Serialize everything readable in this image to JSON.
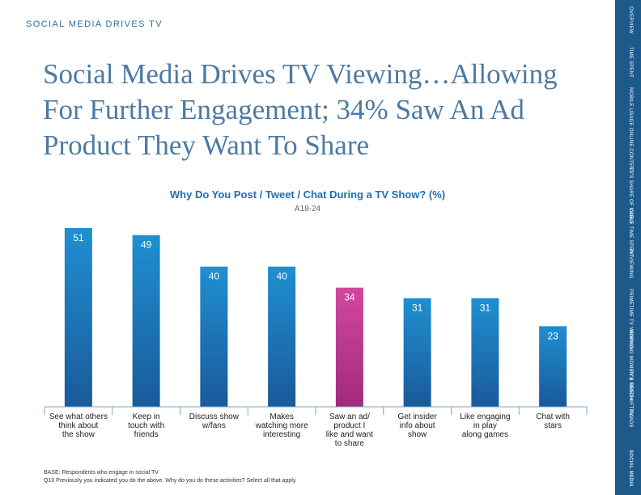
{
  "header": {
    "section_label": "SOCIAL MEDIA DRIVES TV",
    "title": "Social Media Drives TV Viewing…Allowing For Further Engagement; 34% Saw An Ad Product They Want To Share"
  },
  "chart_data": {
    "type": "bar",
    "title": "Why Do You Post / Tweet / Chat During a TV Show? (%)",
    "subtitle": "A18-24",
    "categories": [
      "See what others think about the show",
      "Keep in touch with friends",
      "Discuss show w/fans",
      "Makes watching more interesting",
      "Saw an ad/ product I like and want to share",
      "Get insider info about show",
      "Like engaging in play along games",
      "Chat with stars"
    ],
    "category_lines": [
      [
        "See what others",
        "think about",
        "the show"
      ],
      [
        "Keep in",
        "touch with",
        "friends"
      ],
      [
        "Discuss show",
        "w/fans"
      ],
      [
        "Makes",
        "watching more",
        "interesting"
      ],
      [
        "Saw an ad/",
        "product I",
        "like and want",
        "to share"
      ],
      [
        "Get insider",
        "info about",
        "show"
      ],
      [
        "Like engaging",
        "in play",
        "along games"
      ],
      [
        "Chat with",
        "stars"
      ]
    ],
    "values": [
      51,
      49,
      40,
      40,
      34,
      31,
      31,
      23
    ],
    "highlight_index": 4,
    "ylim": [
      0,
      60
    ],
    "colors": {
      "bar_top": "#1f8fd1",
      "bar_bottom": "#1a5a9a",
      "highlight_top": "#d2479f",
      "highlight_bottom": "#a02a7b",
      "axis": "#7aa7cf"
    }
  },
  "footnotes": {
    "base": "BASE: Respondents who engage in social TV",
    "question": "Q10 Previously you indicated you do the above. Why do you do these activities? Select all that apply."
  },
  "sidebar": {
    "items": [
      "OVERVIEW",
      "TIME SPENT",
      "MOBILE USAGE",
      "ONLINE CONTENT",
      "TV'S SHARE OF VIDEO",
      "CABLE TIME SPENT",
      "TV VIEWING",
      "PRIMETIME TV VIEWING",
      "WORKING WOMEN & TIMESHIFTING",
      "TV'S REACH",
      "TV ADS",
      "SOCIAL MEDIA"
    ],
    "active": "SOCIAL MEDIA"
  }
}
